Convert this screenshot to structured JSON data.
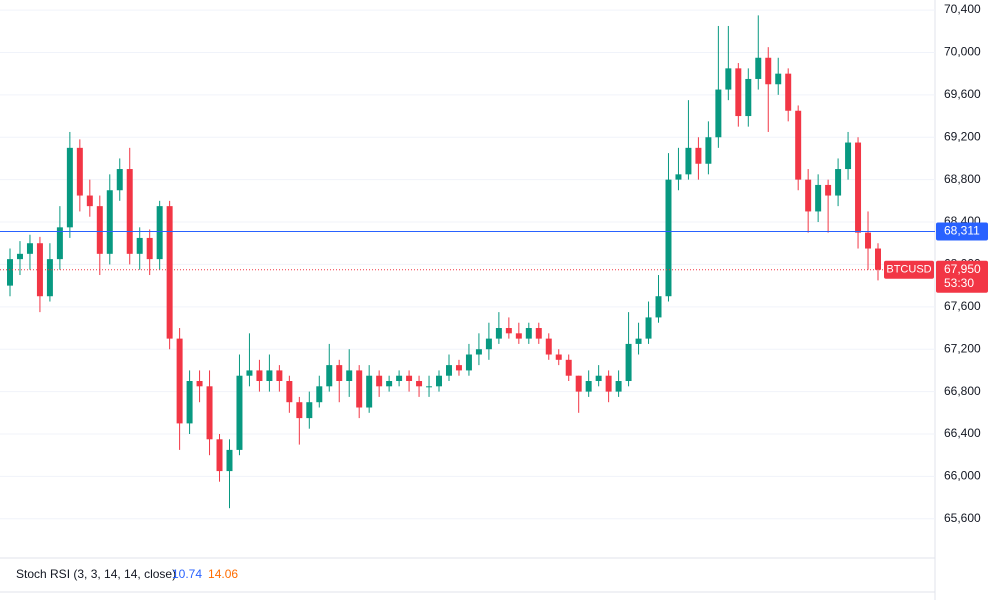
{
  "chart_data": {
    "type": "candlestick",
    "symbol": "BTCUSD",
    "up_color": "#089981",
    "down_color": "#f23645",
    "open": [
      67800,
      68050,
      68100,
      68200,
      67700,
      68050,
      68350,
      69100,
      68650,
      68550,
      68100,
      68700,
      68900,
      68100,
      68250,
      68050,
      68550,
      67300,
      66500,
      66900,
      66850,
      66350,
      66050,
      66250,
      66950,
      67000,
      66900,
      67000,
      66900,
      66700,
      66550,
      66700,
      66850,
      67050,
      66900,
      67000,
      66650,
      66950,
      66850,
      66900,
      66950,
      66900,
      66850,
      66850,
      66950,
      67050,
      67000,
      67150,
      67200,
      67300,
      67400,
      67350,
      67300,
      67400,
      67300,
      67150,
      67100,
      66950,
      66800,
      66900,
      66950,
      66800,
      66900,
      67250,
      67300,
      67500,
      67700,
      68800,
      68850,
      69100,
      68950,
      69200,
      69650,
      69850,
      69400,
      69750,
      69950,
      69700,
      69800,
      69450,
      68800,
      68500,
      68750,
      68650,
      68900,
      69150,
      68300,
      68150
    ],
    "high": [
      68150,
      68220,
      68280,
      68260,
      68200,
      68550,
      69250,
      69180,
      68800,
      68650,
      68850,
      69000,
      69100,
      68350,
      68330,
      68600,
      68600,
      67400,
      67000,
      67000,
      67000,
      66400,
      66350,
      67150,
      67350,
      67100,
      67150,
      67050,
      66950,
      66750,
      66800,
      66950,
      67250,
      67100,
      67200,
      67050,
      67050,
      67000,
      66950,
      67000,
      67000,
      66950,
      66950,
      67000,
      67150,
      67100,
      67250,
      67350,
      67450,
      67550,
      67500,
      67450,
      67450,
      67450,
      67350,
      67200,
      67150,
      66950,
      67000,
      67050,
      67000,
      67000,
      67550,
      67450,
      67650,
      67900,
      69050,
      69100,
      69550,
      69200,
      69350,
      70250,
      70250,
      69900,
      69850,
      70350,
      70050,
      69950,
      69850,
      69500,
      68900,
      68850,
      68800,
      69000,
      69250,
      69200,
      68500,
      68200
    ],
    "low": [
      67700,
      67900,
      67950,
      67550,
      67650,
      67950,
      68250,
      68500,
      68450,
      67900,
      68000,
      68600,
      68000,
      67950,
      67900,
      67950,
      67200,
      66250,
      66400,
      66700,
      66200,
      65950,
      65700,
      66200,
      66850,
      66800,
      66800,
      66800,
      66600,
      66300,
      66450,
      66650,
      66800,
      66700,
      66750,
      66550,
      66600,
      66750,
      66800,
      66850,
      66800,
      66750,
      66750,
      66800,
      66900,
      66950,
      66950,
      67050,
      67100,
      67250,
      67300,
      67250,
      67250,
      67250,
      67100,
      67050,
      66900,
      66600,
      66750,
      66850,
      66700,
      66750,
      66850,
      67150,
      67250,
      67450,
      67650,
      68700,
      68800,
      68800,
      68850,
      69100,
      69550,
      69300,
      69300,
      69650,
      69250,
      69600,
      69350,
      68700,
      68300,
      68400,
      68300,
      68550,
      68800,
      68150,
      67950,
      67850
    ],
    "close": [
      68050,
      68100,
      68200,
      67700,
      68050,
      68350,
      69100,
      68650,
      68550,
      68100,
      68700,
      68900,
      68100,
      68250,
      68050,
      68550,
      67300,
      66500,
      66900,
      66850,
      66350,
      66050,
      66250,
      66950,
      67000,
      66900,
      67000,
      66900,
      66700,
      66550,
      66700,
      66850,
      67050,
      66900,
      67000,
      66650,
      66950,
      66850,
      66900,
      66950,
      66900,
      66850,
      66850,
      66950,
      67050,
      67000,
      67150,
      67200,
      67300,
      67400,
      67350,
      67300,
      67400,
      67300,
      67150,
      67100,
      66950,
      66800,
      66900,
      66950,
      66800,
      66900,
      67250,
      67300,
      67500,
      67700,
      68800,
      68850,
      69100,
      68950,
      69200,
      69650,
      69850,
      69400,
      69750,
      69950,
      69700,
      69800,
      69450,
      68800,
      68500,
      68750,
      68650,
      68900,
      69150,
      68300,
      68150,
      67950
    ],
    "ylim": [
      65230,
      70495
    ],
    "yticks": [
      {
        "value": 65600,
        "label": "65,600"
      },
      {
        "value": 66000,
        "label": "66,000"
      },
      {
        "value": 66400,
        "label": "66,400"
      },
      {
        "value": 66800,
        "label": "66,800"
      },
      {
        "value": 67200,
        "label": "67,200"
      },
      {
        "value": 67600,
        "label": "67,600"
      },
      {
        "value": 68000,
        "label": "68,000"
      },
      {
        "value": 68400,
        "label": "68,400"
      },
      {
        "value": 68800,
        "label": "68,800"
      },
      {
        "value": 69200,
        "label": "69,200"
      },
      {
        "value": 69600,
        "label": "69,600"
      },
      {
        "value": 70000,
        "label": "70,000"
      },
      {
        "value": 70400,
        "label": "70,400"
      }
    ],
    "grid": true,
    "price_line": {
      "value": 68311,
      "label": "68,311",
      "color": "#2962ff"
    },
    "last_price": {
      "value": 67950,
      "label": "67,950",
      "countdown": "53:30",
      "color": "#f23645"
    },
    "indicator": {
      "name": "Stoch RSI (3, 3, 14, 14, close)",
      "series": [
        {
          "color": "#2962ff",
          "value": 10.74
        },
        {
          "color": "#ff6d00",
          "value": 14.06
        }
      ]
    }
  }
}
